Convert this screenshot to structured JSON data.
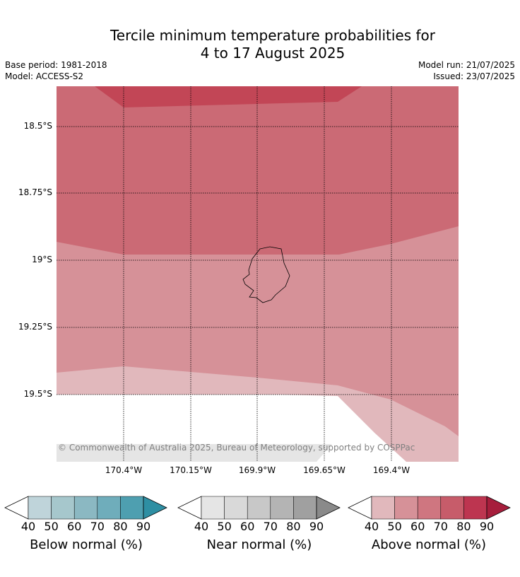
{
  "title_line1": "Tercile minimum temperature probabilities for",
  "title_line2": "4 to 17 August 2025",
  "meta_left": [
    "Base period: 1981-2018",
    "Model: ACCESS-S2"
  ],
  "meta_right": [
    "Model run: 21/07/2025",
    "Issued: 23/07/2025"
  ],
  "copyright": "© Commonwealth of Australia 2025, Bureau of Meteorology, supported by COSPPac",
  "lat_labels": [
    "18.5°S",
    "18.75°S",
    "19°S",
    "19.25°S",
    "19.5°S"
  ],
  "lon_labels": [
    "170.4°W",
    "170.15°W",
    "169.9°W",
    "169.65°W",
    "169.4°W"
  ],
  "colorbars": [
    {
      "name": "Below normal (%)",
      "ticks": [
        "40",
        "50",
        "60",
        "70",
        "80",
        "90"
      ],
      "colors": [
        "#bfd4da",
        "#a6c7cc",
        "#8bb8c2",
        "#6fadbb",
        "#4e9fb0",
        "#2e8fa3"
      ]
    },
    {
      "name": "Near normal (%)",
      "ticks": [
        "40",
        "50",
        "60",
        "70",
        "80",
        "90"
      ],
      "colors": [
        "#e5e5e5",
        "#d9d9d9",
        "#c8c8c8",
        "#b4b4b4",
        "#a0a0a0",
        "#8a8a8a"
      ]
    },
    {
      "name": "Above normal (%)",
      "ticks": [
        "40",
        "50",
        "60",
        "70",
        "80",
        "90"
      ],
      "colors": [
        "#e1b8bc",
        "#d69198",
        "#cf7680",
        "#c75c6a",
        "#bd3550",
        "#a61e3c"
      ]
    }
  ]
}
